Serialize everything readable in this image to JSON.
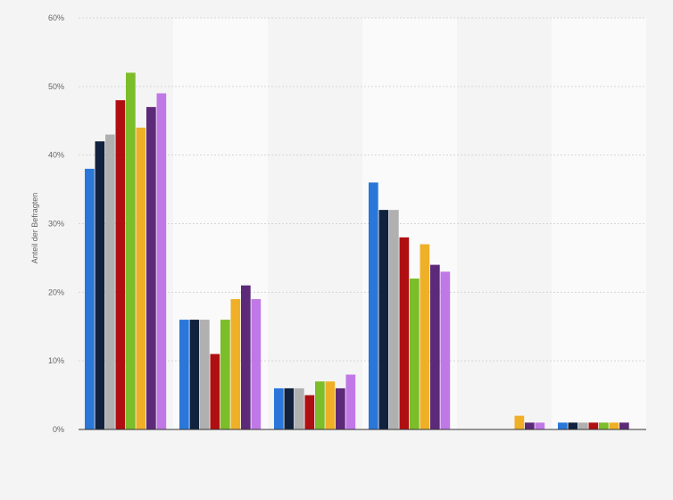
{
  "chart_data": {
    "type": "bar",
    "title": "",
    "xlabel": "",
    "ylabel": "Anteil der Befragten",
    "ylim": [
      0,
      60
    ],
    "yticks": [
      0,
      10,
      20,
      30,
      40,
      50,
      60
    ],
    "ytick_labels": [
      "0%",
      "10%",
      "20%",
      "30%",
      "40%",
      "50%",
      "60%"
    ],
    "grid": true,
    "legend": "none",
    "categories": [
      "",
      "",
      "",
      "",
      "",
      ""
    ],
    "series": [
      {
        "color": "#2a77d9",
        "values": [
          38,
          16,
          6,
          36,
          null,
          1
        ]
      },
      {
        "color": "#10223d",
        "values": [
          42,
          16,
          6,
          32,
          null,
          1
        ]
      },
      {
        "color": "#b0b0b0",
        "values": [
          43,
          16,
          6,
          32,
          null,
          1
        ]
      },
      {
        "color": "#b00f12",
        "values": [
          48,
          11,
          5,
          28,
          null,
          1
        ]
      },
      {
        "color": "#7cbd2a",
        "values": [
          52,
          16,
          7,
          22,
          null,
          1
        ]
      },
      {
        "color": "#efb028",
        "values": [
          44,
          19,
          7,
          27,
          2,
          1
        ]
      },
      {
        "color": "#5c2a78",
        "values": [
          47,
          21,
          6,
          24,
          1,
          1
        ]
      },
      {
        "color": "#c078e6",
        "values": [
          49,
          19,
          8,
          23,
          1,
          null
        ]
      }
    ]
  }
}
